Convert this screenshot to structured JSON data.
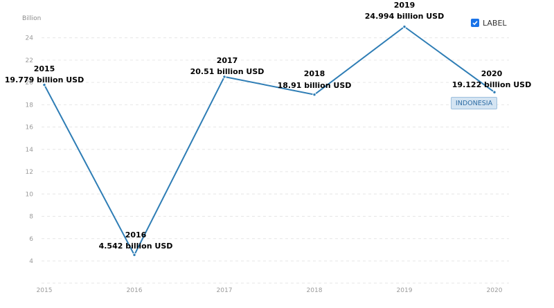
{
  "chart_data": {
    "type": "line",
    "title": "",
    "xlabel": "",
    "ylabel": "Billion",
    "categories": [
      "2015",
      "2016",
      "2017",
      "2018",
      "2019",
      "2020"
    ],
    "ylim": [
      2,
      26
    ],
    "yticks": [
      "4",
      "6",
      "8",
      "10",
      "12",
      "14",
      "16",
      "18",
      "20",
      "22",
      "24"
    ],
    "grid": true,
    "legend_position": "top-right",
    "series": [
      {
        "name": "INDONESIA",
        "color": "#2e7db5",
        "values": [
          19.779,
          4.542,
          20.51,
          18.91,
          24.994,
          19.122
        ],
        "labels": [
          {
            "year": "2015",
            "text": "19.779 billion USD"
          },
          {
            "year": "2016",
            "text": "4.542 billion USD"
          },
          {
            "year": "2017",
            "text": "20.51 billion USD"
          },
          {
            "year": "2018",
            "text": "18.91 billion USD"
          },
          {
            "year": "2019",
            "text": "24.994 billion USD"
          },
          {
            "year": "2020",
            "text": "19.122 billion USD"
          }
        ]
      }
    ]
  },
  "controls": {
    "label_toggle": {
      "text": "LABEL",
      "checked": true,
      "color": "#1a73e8"
    }
  }
}
